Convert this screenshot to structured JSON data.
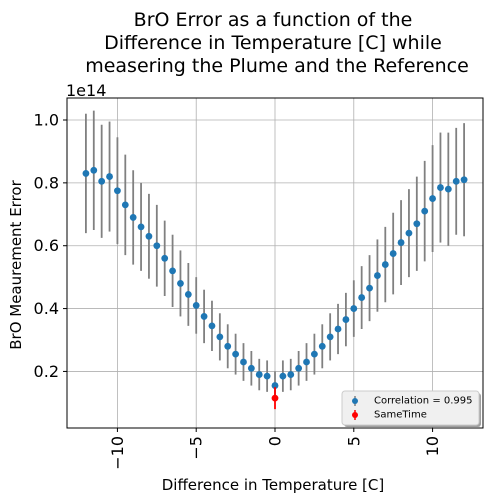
{
  "chart_data": {
    "type": "scatter",
    "title_lines": [
      "BrO Error as a function of the",
      "Difference in Temperature [C] while",
      "measering the Plume and the Reference"
    ],
    "xlabel": "Difference in Temperature [C]",
    "ylabel": "BrO Meaurement Error",
    "y_multiplier": "1e14",
    "xlim": [
      -13.2,
      13.2
    ],
    "ylim": [
      0.02,
      1.07
    ],
    "x_ticks": [
      -10,
      -5,
      0,
      5,
      10
    ],
    "x_tick_labels": [
      "−10",
      "−5",
      "0",
      "5",
      "10"
    ],
    "y_ticks": [
      0.2,
      0.4,
      0.6,
      0.8,
      1.0
    ],
    "y_tick_labels": [
      "0.2",
      "0.4",
      "0.6",
      "0.8",
      "1.0"
    ],
    "grid": true,
    "legend_position": "lower-right",
    "series": [
      {
        "name": "Correlation = 0.995",
        "color": "#1f77b4",
        "errorbar_color": "#808080",
        "x": [
          -12,
          -11.5,
          -11,
          -10.5,
          -10,
          -9.5,
          -9,
          -8.5,
          -8,
          -7.5,
          -7,
          -6.5,
          -6,
          -5.5,
          -5,
          -4.5,
          -4,
          -3.5,
          -3,
          -2.5,
          -2,
          -1.5,
          -1,
          -0.5,
          0,
          0.5,
          1,
          1.5,
          2,
          2.5,
          3,
          3.5,
          4,
          4.5,
          5,
          5.5,
          6,
          6.5,
          7,
          7.5,
          8,
          8.5,
          9,
          9.5,
          10,
          10.5,
          11,
          11.5,
          12
        ],
        "y": [
          0.83,
          0.84,
          0.805,
          0.82,
          0.775,
          0.73,
          0.69,
          0.66,
          0.63,
          0.6,
          0.56,
          0.52,
          0.48,
          0.445,
          0.41,
          0.375,
          0.345,
          0.31,
          0.28,
          0.255,
          0.23,
          0.21,
          0.19,
          0.185,
          0.155,
          0.185,
          0.19,
          0.21,
          0.23,
          0.255,
          0.28,
          0.31,
          0.335,
          0.365,
          0.4,
          0.435,
          0.465,
          0.505,
          0.54,
          0.575,
          0.61,
          0.64,
          0.67,
          0.71,
          0.75,
          0.785,
          0.78,
          0.805,
          0.81
        ],
        "yerr": [
          0.19,
          0.19,
          0.18,
          0.175,
          0.17,
          0.16,
          0.15,
          0.14,
          0.135,
          0.13,
          0.12,
          0.115,
          0.105,
          0.1,
          0.09,
          0.085,
          0.08,
          0.075,
          0.07,
          0.065,
          0.06,
          0.055,
          0.05,
          0.05,
          0.045,
          0.05,
          0.05,
          0.055,
          0.06,
          0.065,
          0.07,
          0.075,
          0.08,
          0.085,
          0.09,
          0.1,
          0.105,
          0.115,
          0.12,
          0.13,
          0.135,
          0.14,
          0.15,
          0.16,
          0.17,
          0.175,
          0.18,
          0.17,
          0.18
        ]
      },
      {
        "name": "SameTime",
        "color": "#ff0000",
        "errorbar_color": "#ff0000",
        "x": [
          0
        ],
        "y": [
          0.115
        ],
        "yerr": [
          0.035
        ]
      }
    ]
  }
}
